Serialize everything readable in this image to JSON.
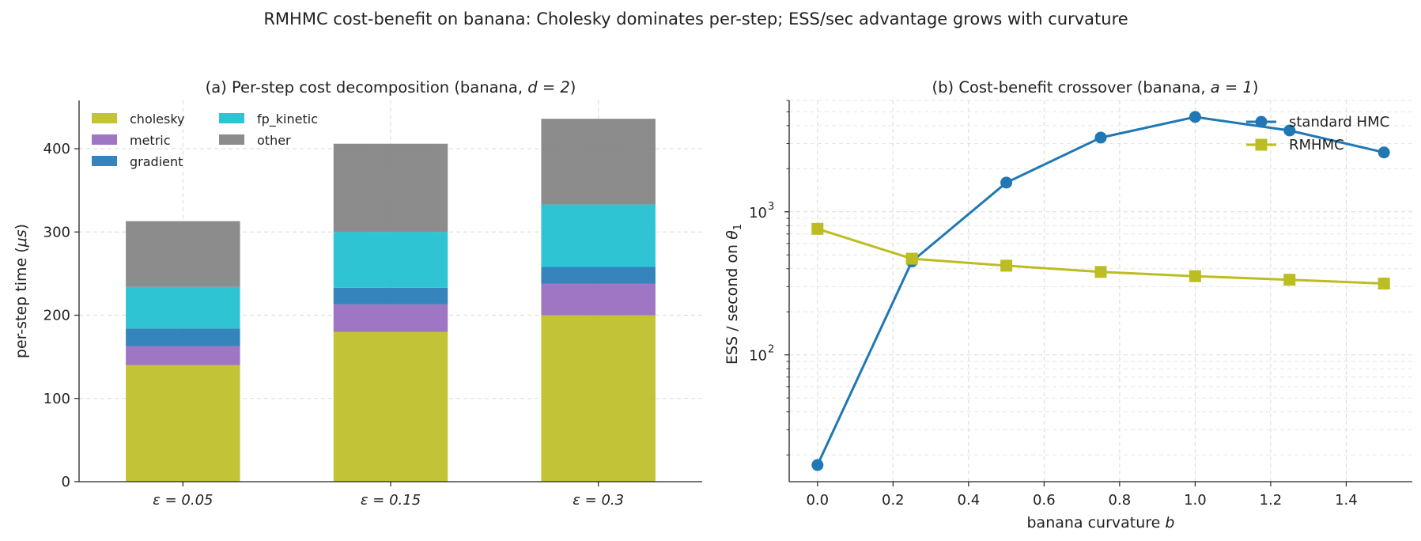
{
  "suptitle": "RMHMC cost-benefit on banana: Cholesky dominates per-step; ESS/sec advantage grows with curvature",
  "colors": {
    "cholesky": "#bcbd22",
    "metric": "#9467bd",
    "gradient": "#1f77b4",
    "fp_kinetic": "#17becf",
    "other": "#7f7f7f",
    "standard_hmc": "#1f77b4",
    "rmhmc": "#bcbd22"
  },
  "chart_data": [
    {
      "type": "bar",
      "stacked": true,
      "title": "(a) Per-step cost decomposition (banana, ",
      "title_math": "d = 2",
      "title_suffix": ")",
      "xlabel": "",
      "ylabel": "per-step time (",
      "ylabel_math": "μs",
      "ylabel_suffix": ")",
      "categories": [
        "ε = 0.05",
        "ε = 0.15",
        "ε = 0.3"
      ],
      "ylim": [
        0,
        458
      ],
      "yticks": [
        0,
        100,
        200,
        300,
        400
      ],
      "grid": true,
      "legend_position": "top-left",
      "series": [
        {
          "name": "cholesky",
          "values": [
            140,
            180,
            200
          ]
        },
        {
          "name": "metric",
          "values": [
            23,
            33,
            38
          ]
        },
        {
          "name": "gradient",
          "values": [
            21,
            20,
            20
          ]
        },
        {
          "name": "fp_kinetic",
          "values": [
            50,
            67,
            75
          ]
        },
        {
          "name": "other",
          "values": [
            79,
            106,
            103
          ]
        }
      ]
    },
    {
      "type": "line",
      "title": "(b) Cost-benefit crossover (banana, ",
      "title_math": "a = 1",
      "title_suffix": ")",
      "xlabel": "banana curvature ",
      "xlabel_math": "b",
      "ylabel": "ESS / second on ",
      "ylabel_math": "θ",
      "ylabel_sub": "1",
      "yscale": "log",
      "xlim": [
        -0.075,
        1.575
      ],
      "ylim": [
        13,
        6000
      ],
      "xticks": [
        0.0,
        0.2,
        0.4,
        0.6,
        0.8,
        1.0,
        1.2,
        1.4
      ],
      "xtick_labels": [
        "0.0",
        "0.2",
        "0.4",
        "0.6",
        "0.8",
        "1.0",
        "1.2",
        "1.4"
      ],
      "ytick_labels": [
        "10",
        "10"
      ],
      "ytick_exponents": [
        "2",
        "3"
      ],
      "grid": true,
      "legend_position": "top-right",
      "x": [
        0.0,
        0.25,
        0.5,
        0.75,
        1.0,
        1.25,
        1.5
      ],
      "series": [
        {
          "name": "standard HMC",
          "marker": "circle",
          "values": [
            17,
            450,
            1600,
            3300,
            4600,
            3700,
            2600
          ]
        },
        {
          "name": "RMHMC",
          "marker": "square",
          "values": [
            760,
            470,
            420,
            380,
            355,
            335,
            315
          ]
        }
      ]
    }
  ]
}
